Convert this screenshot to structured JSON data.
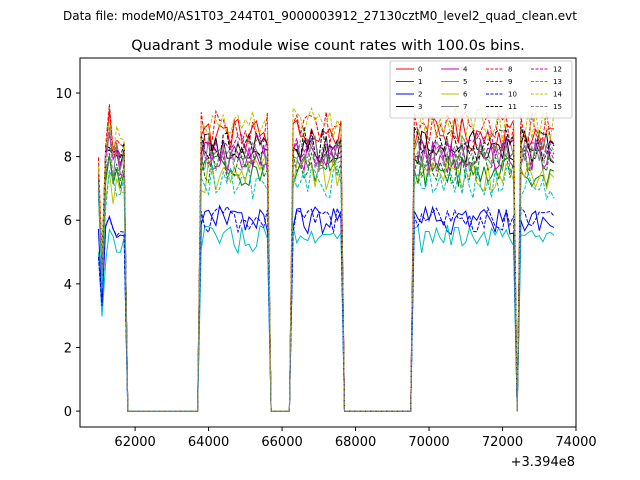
{
  "chart_data": {
    "type": "line",
    "suptitle": "Data file: modeM0/AS1T03_244T01_9000003912_27130cztM0_level2_quad_clean.evt",
    "title": "Quadrant 3 module wise count rates with 100.0s bins.",
    "xlabel": "",
    "ylabel": "",
    "x_offset_label": "+3.394e8",
    "xlim": [
      60500,
      74000
    ],
    "ylim": [
      -0.5,
      11.1
    ],
    "x_ticks": [
      62000,
      64000,
      66000,
      68000,
      70000,
      72000,
      74000
    ],
    "x_tick_labels": [
      "62000",
      "64000",
      "66000",
      "68000",
      "70000",
      "72000",
      "74000"
    ],
    "y_ticks": [
      0,
      2,
      4,
      6,
      8,
      10
    ],
    "y_tick_labels": [
      "0",
      "2",
      "4",
      "6",
      "8",
      "10"
    ],
    "x_start": 61000,
    "x_step": 100,
    "n_points": 125,
    "gti_segments": [
      [
        61000,
        61700
      ],
      [
        63800,
        65600
      ],
      [
        66300,
        67600
      ],
      [
        69600,
        72300
      ],
      [
        72500,
        73400
      ]
    ],
    "legend_position": "upper right",
    "series": [
      {
        "name": "0",
        "color": "#ff0000",
        "dash": "solid",
        "level": 8.7
      },
      {
        "name": "1",
        "color": "#008000",
        "dash": "solid",
        "level": 7.6
      },
      {
        "name": "2",
        "color": "#0000ff",
        "dash": "solid",
        "level": 6.0
      },
      {
        "name": "3",
        "color": "#000000",
        "dash": "solid",
        "level": 8.3
      },
      {
        "name": "4",
        "color": "#bf00bf",
        "dash": "solid",
        "level": 8.0
      },
      {
        "name": "5",
        "color": "#00bfbf",
        "dash": "solid",
        "level": 5.4
      },
      {
        "name": "6",
        "color": "#bfbf00",
        "dash": "solid",
        "level": 7.4
      },
      {
        "name": "7",
        "color": "#808080",
        "dash": "solid",
        "level": 8.1
      },
      {
        "name": "8",
        "color": "#ff0000",
        "dash": "dashed",
        "level": 8.9
      },
      {
        "name": "9",
        "color": "#008000",
        "dash": "dashed",
        "level": 7.7
      },
      {
        "name": "10",
        "color": "#0000ff",
        "dash": "dashed",
        "level": 6.0
      },
      {
        "name": "11",
        "color": "#000000",
        "dash": "dashed",
        "level": 8.4
      },
      {
        "name": "12",
        "color": "#bf00bf",
        "dash": "dashed",
        "level": 8.2
      },
      {
        "name": "13",
        "color": "#00bfbf",
        "dash": "dashed",
        "level": 7.2
      },
      {
        "name": "14",
        "color": "#bfbf00",
        "dash": "dashed",
        "level": 9.0
      },
      {
        "name": "15",
        "color": "#808080",
        "dash": "dashed",
        "level": 8.0
      }
    ]
  }
}
